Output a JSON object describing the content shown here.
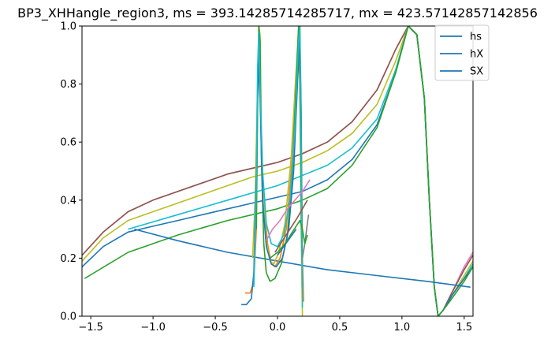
{
  "chart_data": {
    "type": "line",
    "title": "BP3_XHHangle_region3, ms = 393.14285714285717, mx = 423.57142857142856",
    "xlabel": "",
    "ylabel": "",
    "xlim": [
      -1.5708,
      1.5708
    ],
    "ylim": [
      0,
      1
    ],
    "x_ticks": [
      -1.5,
      -1.0,
      -0.5,
      0.0,
      0.5,
      1.0,
      1.5
    ],
    "x_tick_labels": [
      "−1.5",
      "−1.0",
      "−0.5",
      "0.0",
      "0.5",
      "1.0",
      "1.5"
    ],
    "y_ticks": [
      0.0,
      0.2,
      0.4,
      0.6,
      0.8,
      1.0
    ],
    "y_tick_labels": [
      "0.0",
      "0.2",
      "0.4",
      "0.6",
      "0.8",
      "1.0"
    ],
    "grid": false,
    "legend": {
      "placement": "top-right",
      "entries": [
        {
          "name": "hs",
          "color": "#1f77b4"
        },
        {
          "name": "hX",
          "color": "#1f77b4"
        },
        {
          "name": "SX",
          "color": "#1f77b4"
        }
      ]
    },
    "series": [
      {
        "color": "#e377c2",
        "points": [
          [
            -1.57,
            0.21
          ],
          [
            -1.4,
            0.29
          ],
          [
            -1.2,
            0.36
          ],
          [
            -1.0,
            0.4
          ],
          [
            -0.8,
            0.43
          ],
          [
            -0.6,
            0.46
          ],
          [
            -0.4,
            0.49
          ],
          [
            -0.2,
            0.51
          ],
          [
            0.0,
            0.53
          ],
          [
            0.2,
            0.56
          ],
          [
            0.4,
            0.6
          ],
          [
            0.6,
            0.67
          ],
          [
            0.8,
            0.78
          ],
          [
            0.95,
            0.92
          ],
          [
            1.05,
            1.0
          ],
          [
            1.12,
            0.97
          ],
          [
            1.18,
            0.75
          ],
          [
            1.22,
            0.4
          ],
          [
            1.26,
            0.1
          ],
          [
            1.29,
            0.0
          ],
          [
            1.33,
            0.02
          ],
          [
            1.4,
            0.08
          ],
          [
            1.5,
            0.17
          ],
          [
            1.57,
            0.22
          ]
        ]
      },
      {
        "color": "#8c564b",
        "points": [
          [
            -1.57,
            0.21
          ],
          [
            -1.4,
            0.29
          ],
          [
            -1.2,
            0.36
          ],
          [
            -1.0,
            0.4
          ],
          [
            -0.8,
            0.43
          ],
          [
            -0.6,
            0.46
          ],
          [
            -0.4,
            0.49
          ],
          [
            -0.2,
            0.51
          ],
          [
            0.0,
            0.53
          ],
          [
            0.2,
            0.56
          ],
          [
            0.4,
            0.6
          ],
          [
            0.6,
            0.67
          ],
          [
            0.8,
            0.78
          ],
          [
            0.95,
            0.92
          ],
          [
            1.05,
            1.0
          ],
          [
            1.12,
            0.97
          ],
          [
            1.18,
            0.75
          ],
          [
            1.22,
            0.4
          ],
          [
            1.26,
            0.1
          ],
          [
            1.29,
            0.0
          ],
          [
            1.33,
            0.02
          ],
          [
            1.4,
            0.08
          ],
          [
            1.5,
            0.16
          ],
          [
            1.57,
            0.21
          ]
        ]
      },
      {
        "color": "#bcbd22",
        "points": [
          [
            -1.57,
            0.19
          ],
          [
            -1.4,
            0.27
          ],
          [
            -1.2,
            0.33
          ],
          [
            -1.0,
            0.36
          ],
          [
            -0.8,
            0.39
          ],
          [
            -0.6,
            0.42
          ],
          [
            -0.4,
            0.45
          ],
          [
            -0.2,
            0.48
          ],
          [
            0.0,
            0.5
          ],
          [
            0.2,
            0.53
          ],
          [
            0.4,
            0.57
          ],
          [
            0.6,
            0.63
          ],
          [
            0.8,
            0.73
          ],
          [
            0.95,
            0.88
          ],
          [
            1.05,
            1.0
          ],
          [
            1.12,
            0.97
          ],
          [
            1.18,
            0.75
          ],
          [
            1.22,
            0.4
          ],
          [
            1.26,
            0.1
          ],
          [
            1.29,
            0.0
          ],
          [
            1.33,
            0.02
          ],
          [
            1.4,
            0.07
          ],
          [
            1.5,
            0.14
          ],
          [
            1.57,
            0.19
          ]
        ]
      },
      {
        "color": "#17becf",
        "points": [
          [
            -1.2,
            0.3
          ],
          [
            -0.8,
            0.35
          ],
          [
            -0.4,
            0.4
          ],
          [
            0.0,
            0.45
          ],
          [
            0.4,
            0.52
          ],
          [
            0.6,
            0.58
          ],
          [
            0.8,
            0.68
          ],
          [
            0.95,
            0.85
          ],
          [
            1.05,
            1.0
          ],
          [
            1.12,
            0.97
          ],
          [
            1.18,
            0.75
          ],
          [
            1.22,
            0.4
          ],
          [
            1.26,
            0.1
          ],
          [
            1.29,
            0.0
          ],
          [
            1.33,
            0.02
          ],
          [
            1.4,
            0.07
          ],
          [
            1.5,
            0.13
          ],
          [
            1.57,
            0.18
          ]
        ]
      },
      {
        "color": "#1f77b4",
        "points": [
          [
            -1.57,
            0.17
          ],
          [
            -1.4,
            0.24
          ],
          [
            -1.2,
            0.29
          ],
          [
            -1.0,
            0.31
          ],
          [
            -0.8,
            0.33
          ],
          [
            -0.6,
            0.35
          ],
          [
            -0.4,
            0.37
          ],
          [
            -0.2,
            0.39
          ],
          [
            0.0,
            0.41
          ],
          [
            0.2,
            0.43
          ],
          [
            0.4,
            0.47
          ],
          [
            0.6,
            0.54
          ],
          [
            0.8,
            0.66
          ],
          [
            0.95,
            0.84
          ],
          [
            1.05,
            1.0
          ],
          [
            1.12,
            0.97
          ],
          [
            1.18,
            0.75
          ],
          [
            1.22,
            0.4
          ],
          [
            1.26,
            0.1
          ],
          [
            1.29,
            0.0
          ],
          [
            1.33,
            0.02
          ],
          [
            1.4,
            0.07
          ],
          [
            1.5,
            0.13
          ],
          [
            1.57,
            0.17
          ]
        ]
      },
      {
        "color": "#2ca02c",
        "points": [
          [
            -1.55,
            0.13
          ],
          [
            -1.2,
            0.22
          ],
          [
            -0.8,
            0.28
          ],
          [
            -0.4,
            0.33
          ],
          [
            0.0,
            0.37
          ],
          [
            0.2,
            0.4
          ],
          [
            0.4,
            0.44
          ],
          [
            0.6,
            0.52
          ],
          [
            0.8,
            0.65
          ],
          [
            0.95,
            0.84
          ],
          [
            1.05,
            1.0
          ],
          [
            1.12,
            0.97
          ],
          [
            1.18,
            0.75
          ],
          [
            1.22,
            0.4
          ],
          [
            1.26,
            0.1
          ],
          [
            1.29,
            0.0
          ],
          [
            1.33,
            0.02
          ],
          [
            1.4,
            0.06
          ],
          [
            1.5,
            0.12
          ],
          [
            1.57,
            0.17
          ]
        ]
      },
      {
        "color": "#1f77b4",
        "points": [
          [
            -1.15,
            0.3
          ],
          [
            -0.8,
            0.26
          ],
          [
            -0.4,
            0.22
          ],
          [
            0.0,
            0.19
          ],
          [
            0.4,
            0.16
          ],
          [
            0.8,
            0.14
          ],
          [
            1.2,
            0.12
          ],
          [
            1.55,
            0.1
          ]
        ]
      },
      {
        "color": "#ff7f0e",
        "points": [
          [
            -0.26,
            0.08
          ],
          [
            -0.22,
            0.08
          ],
          [
            -0.19,
            0.12
          ],
          [
            -0.17,
            0.3
          ],
          [
            -0.16,
            0.75
          ],
          [
            -0.15,
            1.0
          ],
          [
            -0.14,
            0.95
          ],
          [
            -0.13,
            0.6
          ],
          [
            -0.11,
            0.4
          ],
          [
            -0.08,
            0.25
          ],
          [
            -0.05,
            0.18
          ],
          [
            -0.02,
            0.17
          ],
          [
            0.02,
            0.2
          ],
          [
            0.07,
            0.3
          ],
          [
            0.12,
            0.55
          ],
          [
            0.16,
            0.9
          ],
          [
            0.18,
            1.0
          ],
          [
            0.19,
            0.7
          ],
          [
            0.2,
            0.2
          ],
          [
            0.21,
            0.05
          ]
        ]
      },
      {
        "color": "#bcbd22",
        "points": [
          [
            -0.2,
            0.2
          ],
          [
            -0.18,
            0.4
          ],
          [
            -0.16,
            0.8
          ],
          [
            -0.15,
            1.0
          ],
          [
            -0.14,
            0.97
          ],
          [
            -0.13,
            0.65
          ],
          [
            -0.11,
            0.38
          ],
          [
            -0.09,
            0.26
          ],
          [
            -0.06,
            0.19
          ],
          [
            -0.03,
            0.18
          ],
          [
            0.01,
            0.22
          ],
          [
            0.06,
            0.32
          ],
          [
            0.11,
            0.55
          ],
          [
            0.15,
            0.85
          ],
          [
            0.17,
            1.0
          ],
          [
            0.18,
            0.8
          ],
          [
            0.19,
            0.3
          ],
          [
            0.2,
            0.0
          ]
        ]
      },
      {
        "color": "#2ca02c",
        "points": [
          [
            -0.17,
            0.3
          ],
          [
            -0.16,
            0.7
          ],
          [
            -0.15,
            1.0
          ],
          [
            -0.14,
            0.95
          ],
          [
            -0.13,
            0.55
          ],
          [
            -0.11,
            0.25
          ],
          [
            -0.09,
            0.15
          ],
          [
            -0.06,
            0.12
          ],
          [
            -0.02,
            0.13
          ],
          [
            0.03,
            0.18
          ],
          [
            0.08,
            0.28
          ],
          [
            0.12,
            0.5
          ],
          [
            0.15,
            0.8
          ],
          [
            0.17,
            1.0
          ],
          [
            0.18,
            0.8
          ],
          [
            0.19,
            0.4
          ],
          [
            0.2,
            0.1
          ]
        ]
      },
      {
        "color": "#1f77b4",
        "points": [
          [
            -0.29,
            0.04
          ],
          [
            -0.25,
            0.04
          ],
          [
            -0.21,
            0.06
          ],
          [
            -0.19,
            0.15
          ],
          [
            -0.17,
            0.5
          ],
          [
            -0.155,
            0.88
          ],
          [
            -0.14,
            0.75
          ],
          [
            -0.12,
            0.4
          ],
          [
            -0.09,
            0.24
          ],
          [
            -0.05,
            0.18
          ],
          [
            -0.01,
            0.17
          ],
          [
            0.04,
            0.2
          ],
          [
            0.09,
            0.3
          ],
          [
            0.13,
            0.5
          ],
          [
            0.16,
            0.8
          ],
          [
            0.18,
            0.97
          ],
          [
            0.19,
            0.7
          ],
          [
            0.2,
            0.1
          ]
        ]
      },
      {
        "color": "#17becf",
        "points": [
          [
            -0.19,
            0.1
          ],
          [
            -0.17,
            0.45
          ],
          [
            -0.16,
            0.85
          ],
          [
            -0.15,
            0.98
          ],
          [
            -0.14,
            0.8
          ],
          [
            -0.12,
            0.5
          ],
          [
            -0.09,
            0.32
          ],
          [
            -0.05,
            0.25
          ],
          [
            0.0,
            0.24
          ],
          [
            0.05,
            0.28
          ],
          [
            0.1,
            0.4
          ],
          [
            0.14,
            0.65
          ],
          [
            0.17,
            0.95
          ],
          [
            0.18,
            1.0
          ],
          [
            0.19,
            0.6
          ],
          [
            0.2,
            0.03
          ]
        ]
      },
      {
        "color": "#e377c2",
        "points": [
          [
            -0.09,
            0.26
          ],
          [
            -0.04,
            0.3
          ],
          [
            0.02,
            0.33
          ],
          [
            0.08,
            0.37
          ],
          [
            0.14,
            0.4
          ],
          [
            0.2,
            0.43
          ],
          [
            0.26,
            0.47
          ]
        ]
      },
      {
        "color": "#8c564b",
        "points": [
          [
            -0.02,
            0.22
          ],
          [
            0.04,
            0.26
          ],
          [
            0.1,
            0.3
          ],
          [
            0.16,
            0.34
          ],
          [
            0.2,
            0.37
          ],
          [
            0.24,
            0.4
          ]
        ]
      },
      {
        "color": "#7f7f7f",
        "points": [
          [
            0.2,
            0.2
          ],
          [
            0.22,
            0.25
          ],
          [
            0.24,
            0.32
          ],
          [
            0.25,
            0.35
          ]
        ]
      },
      {
        "color": "#1f77b4",
        "points": [
          [
            0.0,
            0.21
          ],
          [
            0.05,
            0.24
          ],
          [
            0.1,
            0.27
          ],
          [
            0.15,
            0.3
          ]
        ]
      },
      {
        "color": "#2ca02c",
        "points": [
          [
            -0.06,
            0.2
          ],
          [
            0.0,
            0.22
          ],
          [
            0.06,
            0.25
          ],
          [
            0.12,
            0.29
          ],
          [
            0.18,
            0.33
          ],
          [
            0.2,
            0.3
          ],
          [
            0.22,
            0.25
          ],
          [
            0.24,
            0.28
          ]
        ]
      }
    ]
  }
}
